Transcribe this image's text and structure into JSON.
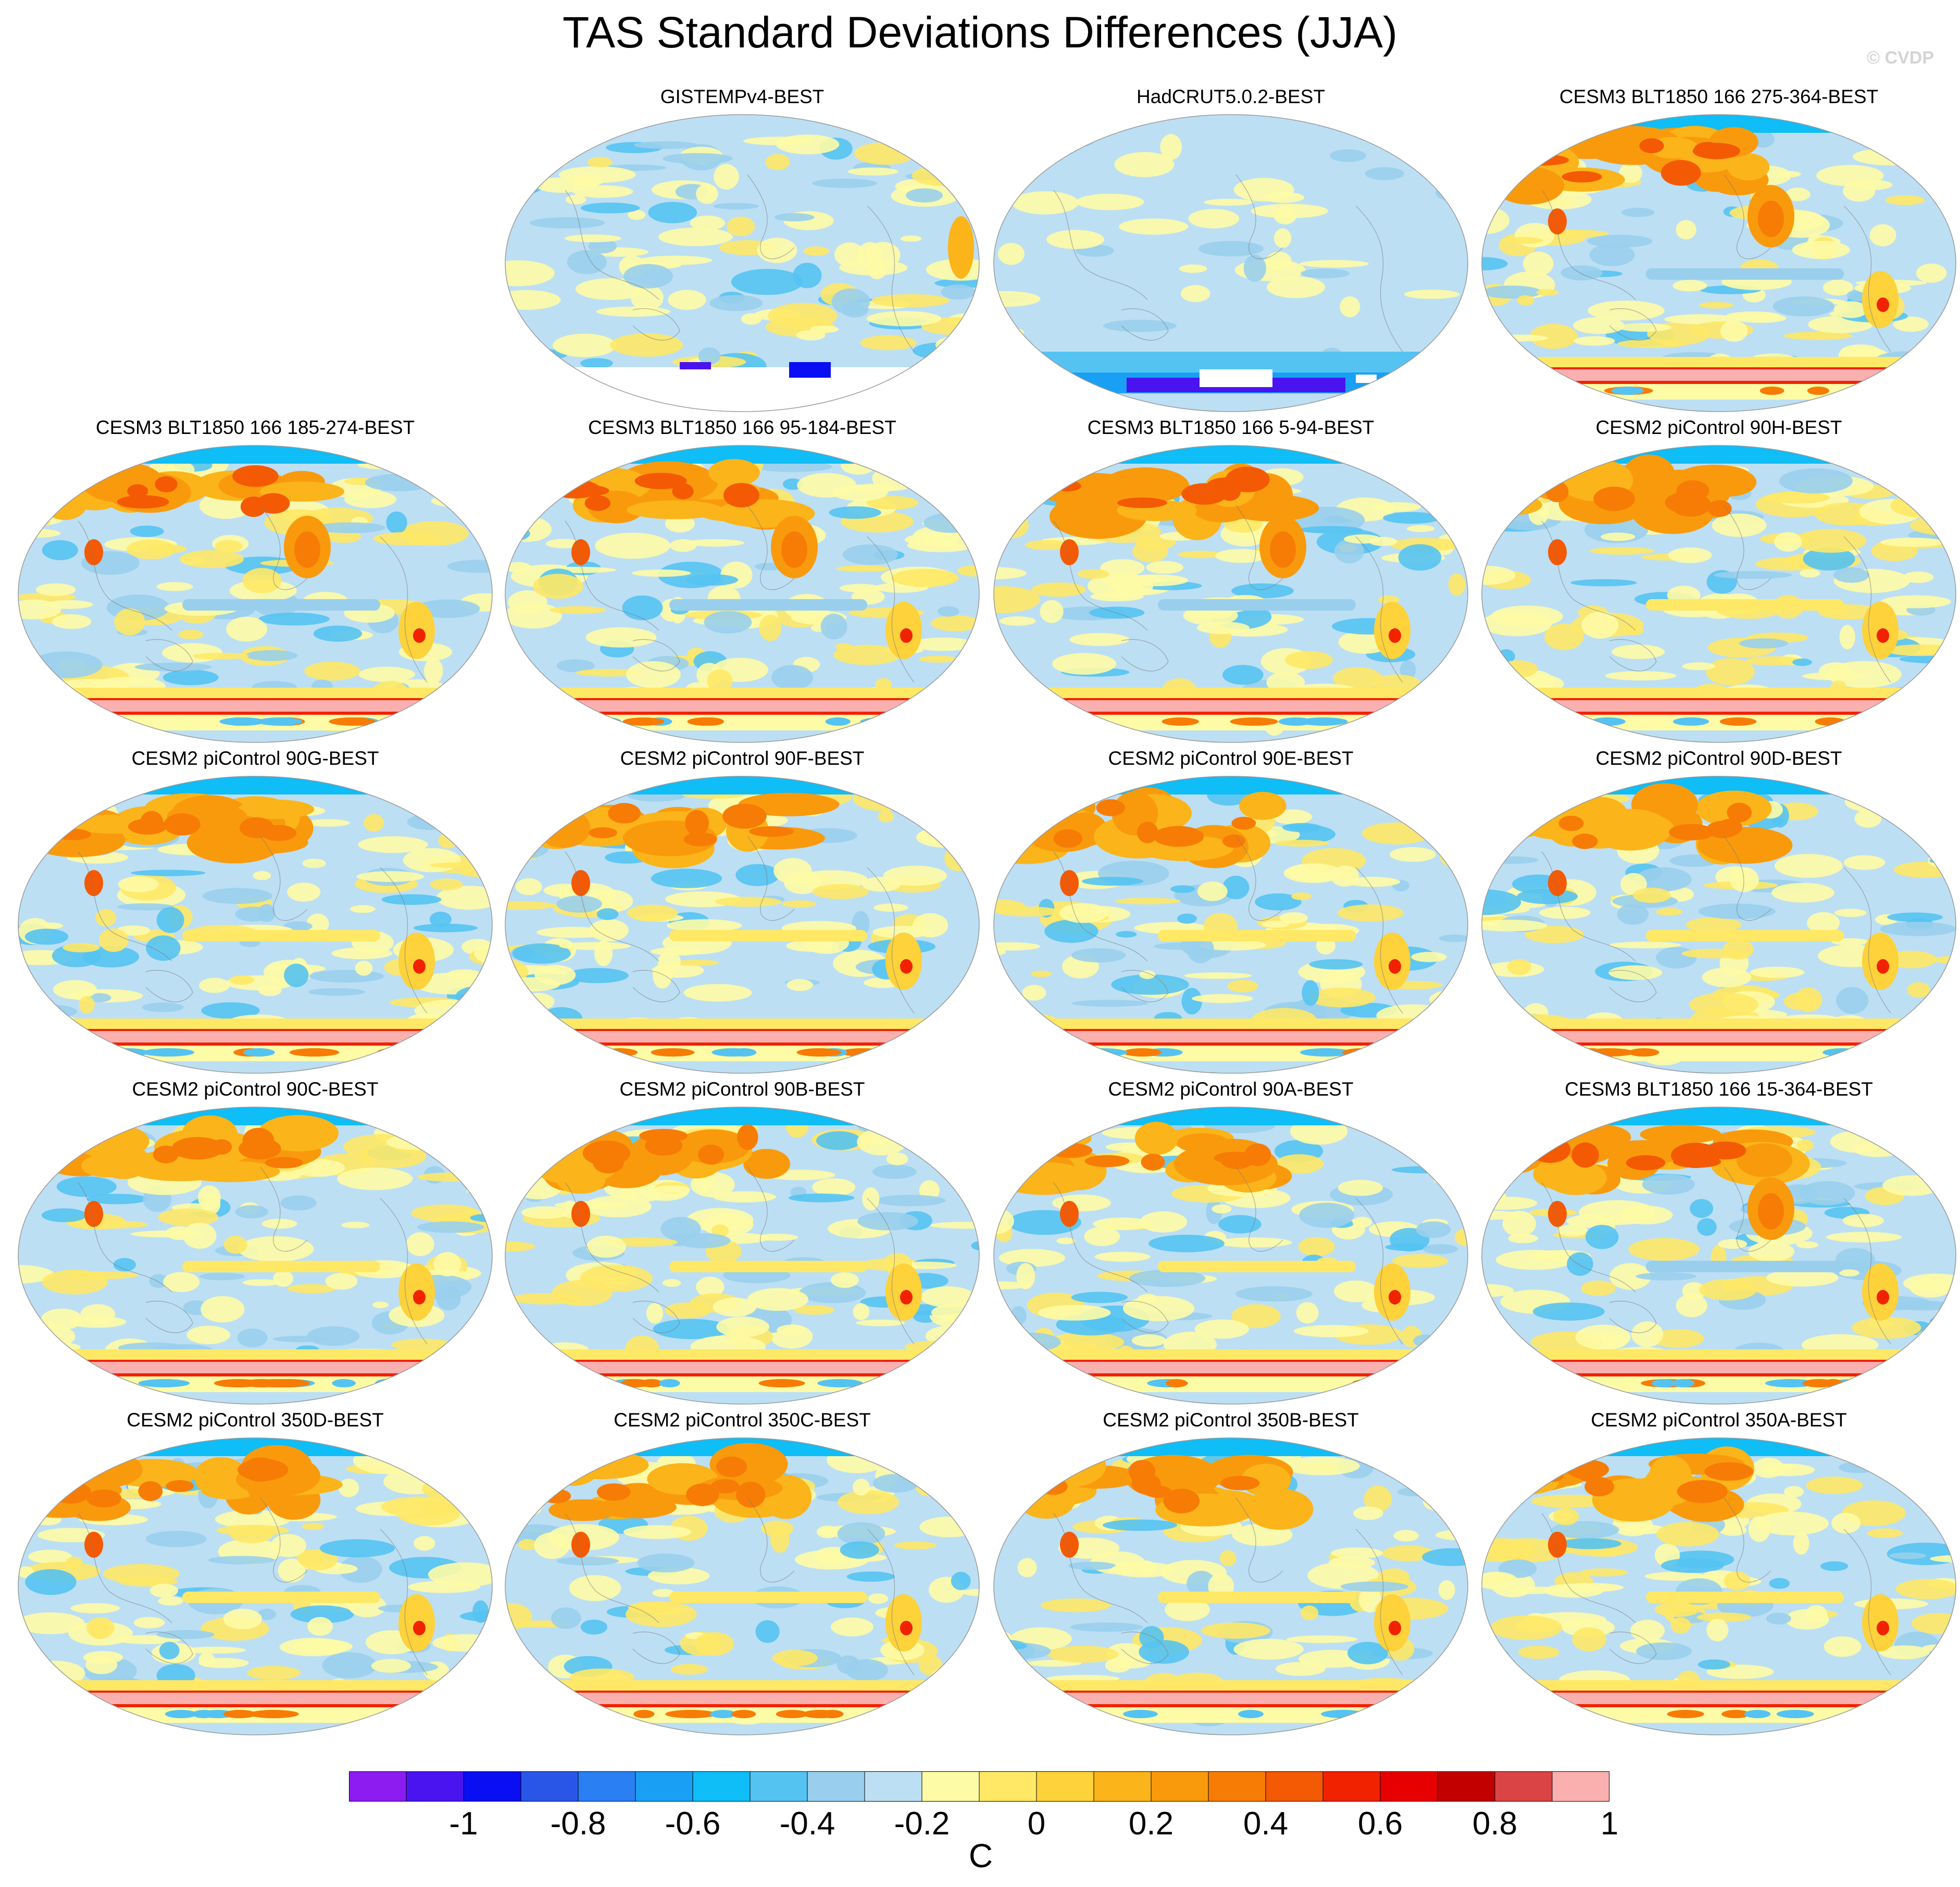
{
  "figure": {
    "title": "TAS Standard Deviations Differences (JJA)",
    "watermark": "© CVDP"
  },
  "panels": [
    {
      "title": "GISTEMPv4-BEST",
      "pattern": "obs"
    },
    {
      "title": "HadCRUT5.0.2-BEST",
      "pattern": "obs_light"
    },
    {
      "title": "CESM3 BLT1850 166 275-364-BEST",
      "pattern": "model_strong"
    },
    {
      "title": "CESM3 BLT1850 166 185-274-BEST",
      "pattern": "model_strong"
    },
    {
      "title": "CESM3 BLT1850 166 95-184-BEST",
      "pattern": "model_strong"
    },
    {
      "title": "CESM3 BLT1850 166 5-94-BEST",
      "pattern": "model_strong"
    },
    {
      "title": "CESM2 piControl 90H-BEST",
      "pattern": "model"
    },
    {
      "title": "CESM2 piControl 90G-BEST",
      "pattern": "model"
    },
    {
      "title": "CESM2 piControl 90F-BEST",
      "pattern": "model"
    },
    {
      "title": "CESM2 piControl 90E-BEST",
      "pattern": "model"
    },
    {
      "title": "CESM2 piControl 90D-BEST",
      "pattern": "model"
    },
    {
      "title": "CESM2 piControl 90C-BEST",
      "pattern": "model"
    },
    {
      "title": "CESM2 piControl 90B-BEST",
      "pattern": "model"
    },
    {
      "title": "CESM2 piControl 90A-BEST",
      "pattern": "model"
    },
    {
      "title": "CESM3 BLT1850 166 15-364-BEST",
      "pattern": "model_strong"
    },
    {
      "title": "CESM2 piControl 350D-BEST",
      "pattern": "model"
    },
    {
      "title": "CESM2 piControl 350C-BEST",
      "pattern": "model"
    },
    {
      "title": "CESM2 piControl 350B-BEST",
      "pattern": "model"
    },
    {
      "title": "CESM2 piControl 350A-BEST",
      "pattern": "model"
    }
  ],
  "colorbar": {
    "unit": "C",
    "tick_labels": [
      "-1",
      "-0.8",
      "-0.6",
      "-0.4",
      "-0.2",
      "0",
      "0.2",
      "0.4",
      "0.6",
      "0.8",
      "1"
    ],
    "levels": [
      -1.1,
      -1.0,
      -0.9,
      -0.8,
      -0.7,
      -0.6,
      -0.5,
      -0.4,
      -0.3,
      -0.2,
      -0.1,
      0,
      0.1,
      0.2,
      0.3,
      0.4,
      0.5,
      0.6,
      0.7,
      0.8,
      0.9,
      1.0,
      1.1
    ],
    "colors": [
      "#8c1cf0",
      "#4a14f0",
      "#0a0ef2",
      "#2a56e8",
      "#2a7ff2",
      "#19a0f5",
      "#0fbdf7",
      "#55c3f2",
      "#99cfec",
      "#bcdff4",
      "#fefba6",
      "#fee866",
      "#fdd23a",
      "#fbb419",
      "#f99a0c",
      "#f77c05",
      "#f45a03",
      "#f02200",
      "#e70000",
      "#c20000",
      "#da4444",
      "#fbb0b0"
    ]
  }
}
